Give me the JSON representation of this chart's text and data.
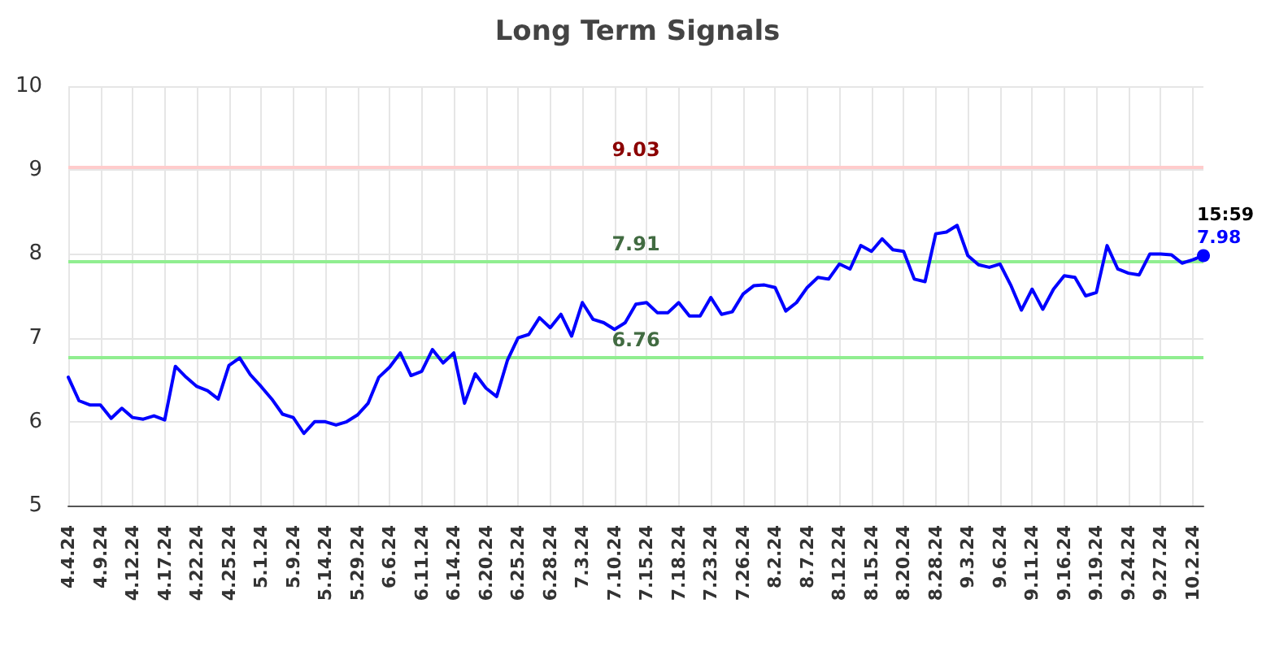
{
  "chart_data": {
    "type": "line",
    "title": "Long Term Signals",
    "categories": [
      "4.4.24",
      null,
      null,
      "4.9.24",
      null,
      null,
      "4.12.24",
      null,
      null,
      "4.17.24",
      null,
      null,
      "4.22.24",
      null,
      null,
      "4.25.24",
      null,
      null,
      "5.1.24",
      null,
      null,
      "5.9.24",
      null,
      null,
      "5.14.24",
      null,
      null,
      "5.29.24",
      null,
      null,
      "6.6.24",
      null,
      null,
      "6.11.24",
      null,
      null,
      "6.14.24",
      null,
      null,
      "6.20.24",
      null,
      null,
      "6.25.24",
      null,
      null,
      "6.28.24",
      null,
      null,
      "7.3.24",
      null,
      null,
      "7.10.24",
      null,
      null,
      "7.15.24",
      null,
      null,
      "7.18.24",
      null,
      null,
      "7.23.24",
      null,
      null,
      "7.26.24",
      null,
      null,
      "8.2.24",
      null,
      null,
      "8.7.24",
      null,
      null,
      "8.12.24",
      null,
      null,
      "8.15.24",
      null,
      null,
      "8.20.24",
      null,
      null,
      "8.28.24",
      null,
      null,
      "9.3.24",
      null,
      null,
      "9.6.24",
      null,
      null,
      "9.11.24",
      null,
      null,
      "9.16.24",
      null,
      null,
      "9.19.24",
      null,
      null,
      "9.24.24",
      null,
      null,
      "9.27.24",
      null,
      null,
      "10.2.24",
      null
    ],
    "series": [
      {
        "color": "#0000ff",
        "values": [
          6.53,
          6.25,
          6.2,
          6.2,
          6.04,
          6.16,
          6.05,
          6.03,
          6.07,
          6.02,
          6.66,
          6.53,
          6.42,
          6.37,
          6.27,
          6.67,
          6.76,
          6.56,
          6.42,
          6.27,
          6.09,
          6.05,
          5.86,
          6.0,
          6.0,
          5.96,
          6.0,
          6.08,
          6.22,
          6.53,
          6.65,
          6.82,
          6.55,
          6.6,
          6.86,
          6.7,
          6.82,
          6.22,
          6.57,
          6.4,
          6.3,
          6.73,
          7.0,
          7.04,
          7.24,
          7.12,
          7.28,
          7.02,
          7.42,
          7.22,
          7.18,
          7.1,
          7.18,
          7.4,
          7.42,
          7.3,
          7.3,
          7.42,
          7.26,
          7.26,
          7.48,
          7.28,
          7.31,
          7.52,
          7.62,
          7.63,
          7.6,
          7.32,
          7.42,
          7.6,
          7.72,
          7.7,
          7.88,
          7.82,
          8.1,
          8.03,
          8.18,
          8.05,
          8.03,
          7.7,
          7.67,
          8.24,
          8.26,
          8.34,
          7.98,
          7.87,
          7.84,
          7.88,
          7.63,
          7.33,
          7.58,
          7.34,
          7.58,
          7.74,
          7.72,
          7.5,
          7.54,
          8.1,
          7.82,
          7.77,
          7.75,
          8.0,
          8.0,
          7.99,
          7.89,
          7.93,
          7.98
        ],
        "value_labels": [
          null,
          null,
          null,
          null,
          null,
          null,
          null,
          null,
          null,
          null,
          null,
          null,
          null,
          null,
          null,
          null,
          null,
          null,
          null,
          null,
          null,
          null,
          null,
          null,
          null,
          null,
          null,
          null,
          null,
          null,
          null,
          null,
          null,
          null,
          null,
          null,
          null,
          null,
          null,
          null,
          null,
          null,
          null,
          null,
          null,
          null,
          null,
          null,
          null,
          null,
          null,
          null,
          null,
          null,
          null,
          null,
          null,
          null,
          null,
          null,
          null,
          null,
          null,
          null,
          null,
          null,
          null,
          null,
          null,
          null,
          null,
          null,
          null,
          null,
          null,
          null,
          null,
          null,
          null,
          null,
          null,
          null,
          null,
          null,
          null,
          null,
          null,
          null,
          null,
          null,
          null,
          null,
          null,
          null,
          null,
          null,
          null,
          null,
          null,
          null,
          null,
          null,
          null,
          null,
          null,
          null,
          "7.98"
        ]
      }
    ],
    "annotations": [
      "15:59"
    ],
    "ref_lines": [
      {
        "axis": "y",
        "value": 9.03,
        "label": "9.03",
        "color": "#ffcccc"
      },
      {
        "axis": "y",
        "value": 7.91,
        "label": "7.91",
        "color": "#90ee90"
      },
      {
        "axis": "y",
        "value": 6.76,
        "label": "6.76",
        "color": "#90ee90"
      }
    ],
    "ylim": [
      5,
      10
    ],
    "yticks": [
      5,
      6,
      7,
      8,
      9,
      10
    ],
    "grid": true,
    "marker": "none",
    "line_style": "solid"
  }
}
